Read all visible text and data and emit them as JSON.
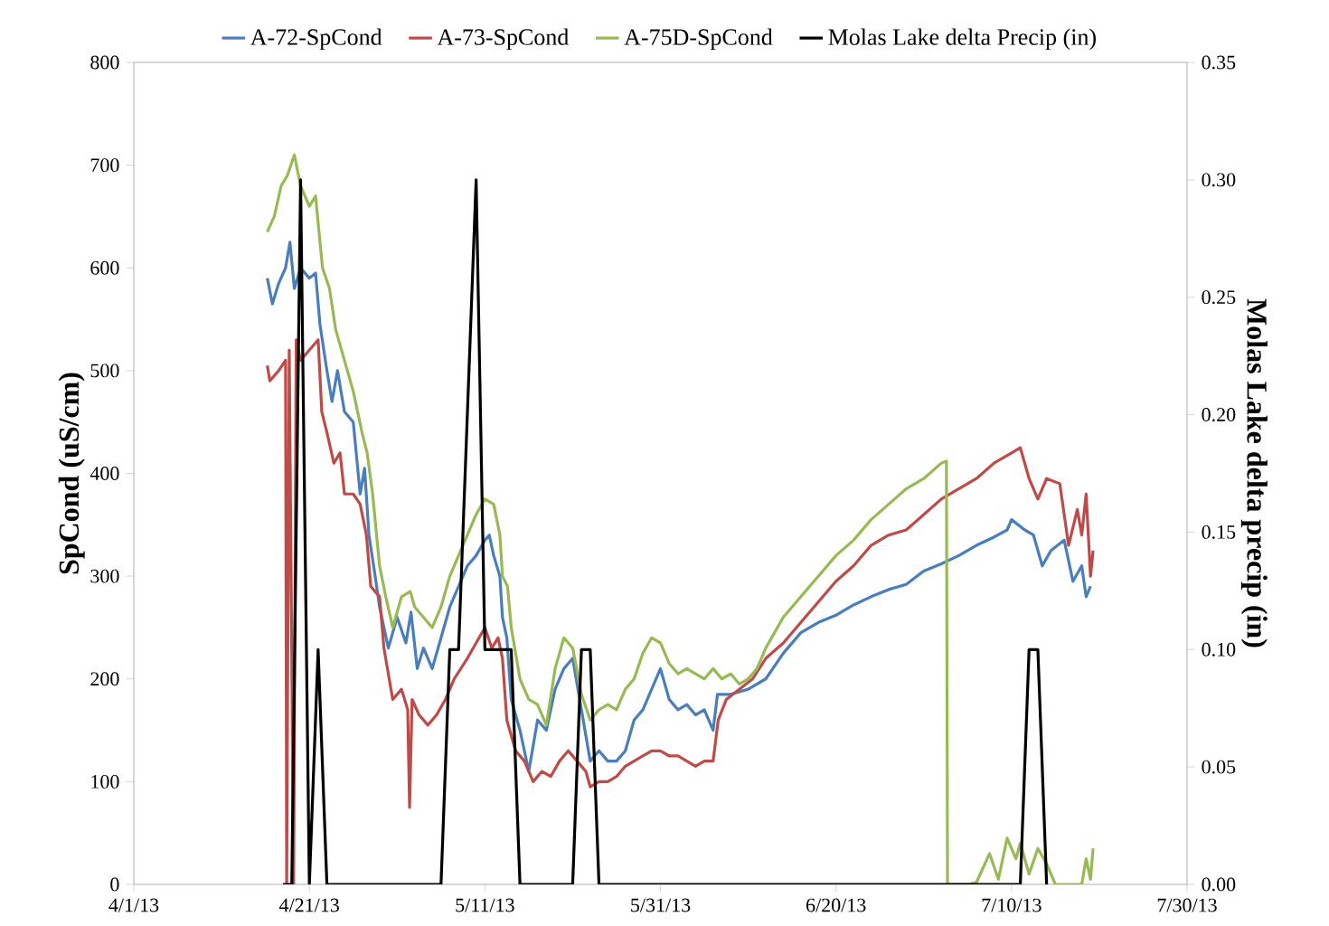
{
  "chart_data": {
    "type": "line",
    "ylabel": "SpCond (uS/cm)",
    "y2label": "Molas Lake delta precip (in)",
    "xlim": [
      "2013-04-01",
      "2013-07-30"
    ],
    "xticks": [
      {
        "value": "2013-04-01",
        "label": "4/1/13"
      },
      {
        "value": "2013-04-21",
        "label": "4/21/13"
      },
      {
        "value": "2013-05-11",
        "label": "5/11/13"
      },
      {
        "value": "2013-05-31",
        "label": "5/31/13"
      },
      {
        "value": "2013-06-20",
        "label": "6/20/13"
      },
      {
        "value": "2013-07-10",
        "label": "7/10/13"
      },
      {
        "value": "2013-07-30",
        "label": "7/30/13"
      }
    ],
    "ylim": [
      0,
      800
    ],
    "yticks": [
      0,
      100,
      200,
      300,
      400,
      500,
      600,
      700,
      800
    ],
    "y2lim": [
      0,
      0.35
    ],
    "y2ticks": [
      {
        "value": 0,
        "label": "0.00"
      },
      {
        "value": 0.05,
        "label": "0.05"
      },
      {
        "value": 0.1,
        "label": "0.10"
      },
      {
        "value": 0.15,
        "label": "0.15"
      },
      {
        "value": 0.2,
        "label": "0.20"
      },
      {
        "value": 0.25,
        "label": "0.25"
      },
      {
        "value": 0.3,
        "label": "0.30"
      },
      {
        "value": 0.35,
        "label": "0.35"
      }
    ],
    "legend": "top",
    "marker": "none",
    "line_style": "solid",
    "grid": false,
    "series": [
      {
        "name": "A-72-SpCond",
        "color": "#4a7ebb",
        "x": [
          "2013-04-16T05:00",
          "2013-04-16T19:00",
          "2013-04-17T12:00",
          "2013-04-18T07:00",
          "2013-04-18T19:00",
          "2013-04-19T07:00",
          "2013-04-20",
          "2013-04-21",
          "2013-04-21T17:00",
          "2013-04-22T05:00",
          "2013-04-23",
          "2013-04-23T14:00",
          "2013-04-24T05:00",
          "2013-04-25",
          "2013-04-26",
          "2013-04-26T19:00",
          "2013-04-27T07:00",
          "2013-04-27T19:00",
          "2013-04-28T12:00",
          "2013-04-29",
          "2013-04-30",
          "2013-05-01",
          "2013-05-02",
          "2013-05-02T14:00",
          "2013-05-03T07:00",
          "2013-05-04",
          "2013-05-05",
          "2013-05-06",
          "2013-05-07",
          "2013-05-08",
          "2013-05-09",
          "2013-05-10",
          "2013-05-11",
          "2013-05-11T12:00",
          "2013-05-12",
          "2013-05-12T17:00",
          "2013-05-13",
          "2013-05-13T12:00",
          "2013-05-14",
          "2013-05-15",
          "2013-05-16",
          "2013-05-17",
          "2013-05-18",
          "2013-05-19",
          "2013-05-20",
          "2013-05-21",
          "2013-05-22",
          "2013-05-23",
          "2013-05-24",
          "2013-05-25",
          "2013-05-26",
          "2013-05-27",
          "2013-05-28",
          "2013-05-29",
          "2013-05-30",
          "2013-05-31",
          "2013-06-01",
          "2013-06-02",
          "2013-06-03",
          "2013-06-04",
          "2013-06-05",
          "2013-06-06",
          "2013-06-06T12:00",
          "2013-06-08",
          "2013-06-10",
          "2013-06-12",
          "2013-06-14",
          "2013-06-16",
          "2013-06-18",
          "2013-06-20",
          "2013-06-22",
          "2013-06-24",
          "2013-06-26",
          "2013-06-28",
          "2013-06-30",
          "2013-07-02",
          "2013-07-04",
          "2013-07-06",
          "2013-07-08",
          "2013-07-09T12:00",
          "2013-07-10",
          "2013-07-11T12:00",
          "2013-07-12T12:00",
          "2013-07-13T12:00",
          "2013-07-14T12:00",
          "2013-07-16",
          "2013-07-17",
          "2013-07-18",
          "2013-07-18T12:00",
          "2013-07-19"
        ],
        "values": [
          590,
          565,
          585,
          600,
          625,
          580,
          600,
          590,
          595,
          545,
          500,
          470,
          500,
          460,
          450,
          380,
          405,
          340,
          300,
          270,
          230,
          260,
          235,
          265,
          210,
          230,
          210,
          240,
          270,
          290,
          310,
          320,
          335,
          340,
          320,
          300,
          260,
          240,
          180,
          150,
          110,
          160,
          150,
          190,
          210,
          220,
          170,
          120,
          130,
          120,
          120,
          130,
          160,
          170,
          190,
          210,
          180,
          170,
          175,
          165,
          170,
          150,
          185,
          185,
          190,
          200,
          225,
          245,
          255,
          262,
          272,
          280,
          287,
          292,
          305,
          312,
          320,
          330,
          338,
          345,
          355,
          345,
          340,
          310,
          325,
          335,
          295,
          310,
          280,
          290
        ]
      },
      {
        "name": "A-73-SpCond",
        "color": "#be4b48",
        "x": [
          "2013-04-16T05:00",
          "2013-04-16T12:00",
          "2013-04-17T12:00",
          "2013-04-18T07:00",
          "2013-04-18T10:00",
          "2013-04-18T17:00",
          "2013-04-19T05:00",
          "2013-04-19T12:00",
          "2013-04-20",
          "2013-04-21",
          "2013-04-22",
          "2013-04-22T10:00",
          "2013-04-23",
          "2013-04-23T19:00",
          "2013-04-24T12:00",
          "2013-04-25",
          "2013-04-26",
          "2013-04-26T19:00",
          "2013-04-27T12:00",
          "2013-04-28",
          "2013-04-29",
          "2013-04-29T12:00",
          "2013-04-30T12:00",
          "2013-05-01T12:00",
          "2013-05-02T05:00",
          "2013-05-02T10:00",
          "2013-05-02T17:00",
          "2013-05-03T12:00",
          "2013-05-04T12:00",
          "2013-05-05T12:00",
          "2013-05-06T12:00",
          "2013-05-07T12:00",
          "2013-05-09",
          "2013-05-10",
          "2013-05-11",
          "2013-05-11T19:00",
          "2013-05-12T12:00",
          "2013-05-13",
          "2013-05-13T12:00",
          "2013-05-14T12:00",
          "2013-05-15T12:00",
          "2013-05-16T12:00",
          "2013-05-17T12:00",
          "2013-05-18T12:00",
          "2013-05-19T12:00",
          "2013-05-20T12:00",
          "2013-05-21T12:00",
          "2013-05-22T12:00",
          "2013-05-23",
          "2013-05-24",
          "2013-05-25",
          "2013-05-26",
          "2013-05-27",
          "2013-05-28",
          "2013-05-29",
          "2013-05-30",
          "2013-05-31",
          "2013-06-01",
          "2013-06-02",
          "2013-06-03",
          "2013-06-04",
          "2013-06-05",
          "2013-06-06",
          "2013-06-06T14:00",
          "2013-06-07T12:00",
          "2013-06-09",
          "2013-06-10T12:00",
          "2013-06-12",
          "2013-06-14",
          "2013-06-16",
          "2013-06-18",
          "2013-06-20",
          "2013-06-22",
          "2013-06-24",
          "2013-06-26",
          "2013-06-28",
          "2013-06-30",
          "2013-07-02",
          "2013-07-04",
          "2013-07-06",
          "2013-07-08",
          "2013-07-10",
          "2013-07-11",
          "2013-07-12",
          "2013-07-13",
          "2013-07-14",
          "2013-07-15T12:00",
          "2013-07-16T12:00",
          "2013-07-17T12:00",
          "2013-07-18",
          "2013-07-18T12:00",
          "2013-07-19",
          "2013-07-19T07:00"
        ],
        "values": [
          505,
          490,
          500,
          510,
          0,
          520,
          0,
          530,
          510,
          520,
          530,
          460,
          440,
          410,
          420,
          380,
          380,
          370,
          340,
          290,
          280,
          230,
          180,
          190,
          170,
          75,
          180,
          165,
          155,
          165,
          180,
          200,
          220,
          235,
          250,
          230,
          240,
          220,
          160,
          130,
          120,
          100,
          110,
          105,
          120,
          130,
          120,
          110,
          95,
          100,
          100,
          105,
          115,
          120,
          125,
          130,
          130,
          125,
          125,
          120,
          115,
          120,
          120,
          160,
          180,
          190,
          200,
          220,
          235,
          255,
          275,
          295,
          310,
          330,
          340,
          345,
          360,
          375,
          385,
          395,
          410,
          420,
          425,
          395,
          375,
          395,
          390,
          330,
          365,
          340,
          380,
          300,
          325
        ]
      },
      {
        "name": "A-75D-SpCond",
        "color": "#98b954",
        "x": [
          "2013-04-16T05:00",
          "2013-04-17",
          "2013-04-17T19:00",
          "2013-04-18T12:00",
          "2013-04-19T07:00",
          "2013-04-20",
          "2013-04-21",
          "2013-04-21T17:00",
          "2013-04-22T12:00",
          "2013-04-23T07:00",
          "2013-04-24",
          "2013-04-25",
          "2013-04-26",
          "2013-04-27",
          "2013-04-27T14:00",
          "2013-04-28T05:00",
          "2013-04-29",
          "2013-04-29T17:00",
          "2013-04-30T12:00",
          "2013-05-01T12:00",
          "2013-05-02T12:00",
          "2013-05-03",
          "2013-05-04",
          "2013-05-05",
          "2013-05-06",
          "2013-05-07",
          "2013-05-08",
          "2013-05-09",
          "2013-05-10",
          "2013-05-11",
          "2013-05-12",
          "2013-05-12T17:00",
          "2013-05-13",
          "2013-05-13T14:00",
          "2013-05-14",
          "2013-05-15",
          "2013-05-16",
          "2013-05-17",
          "2013-05-18",
          "2013-05-19",
          "2013-05-20",
          "2013-05-21",
          "2013-05-22",
          "2013-05-23",
          "2013-05-24",
          "2013-05-25",
          "2013-05-26",
          "2013-05-27",
          "2013-05-28",
          "2013-05-29",
          "2013-05-30",
          "2013-05-31",
          "2013-06-01",
          "2013-06-02",
          "2013-06-03",
          "2013-06-04",
          "2013-06-05",
          "2013-06-06",
          "2013-06-07",
          "2013-06-08",
          "2013-06-09",
          "2013-06-10",
          "2013-06-11",
          "2013-06-12",
          "2013-06-14",
          "2013-06-16",
          "2013-06-18",
          "2013-06-20",
          "2013-06-22",
          "2013-06-24",
          "2013-06-26",
          "2013-06-28",
          "2013-06-30",
          "2013-07-02",
          "2013-07-02T14:00",
          "2013-07-02T17:00",
          "2013-07-05",
          "2013-07-06",
          "2013-07-07T12:00",
          "2013-07-08T12:00",
          "2013-07-09T12:00",
          "2013-07-10T12:00",
          "2013-07-11",
          "2013-07-12",
          "2013-07-13",
          "2013-07-14",
          "2013-07-15",
          "2013-07-17",
          "2013-07-18",
          "2013-07-18T12:00",
          "2013-07-19",
          "2013-07-19T07:00"
        ],
        "values": [
          635,
          650,
          680,
          690,
          710,
          680,
          660,
          670,
          600,
          580,
          540,
          510,
          480,
          440,
          420,
          380,
          310,
          280,
          250,
          280,
          285,
          270,
          260,
          250,
          270,
          300,
          320,
          340,
          360,
          375,
          370,
          340,
          300,
          290,
          250,
          200,
          180,
          175,
          155,
          210,
          240,
          230,
          185,
          160,
          170,
          175,
          170,
          190,
          200,
          225,
          240,
          235,
          215,
          205,
          210,
          205,
          200,
          210,
          200,
          205,
          195,
          200,
          210,
          230,
          260,
          280,
          300,
          320,
          335,
          355,
          370,
          385,
          395,
          410,
          412,
          0,
          0,
          2,
          30,
          5,
          45,
          25,
          40,
          10,
          35,
          20,
          0,
          0,
          0,
          25,
          5,
          35
        ]
      },
      {
        "name": "Molas Lake delta Precip (in)",
        "color": "#000000",
        "axis": "y2",
        "x": [
          "2013-04-18",
          "2013-04-19",
          "2013-04-20",
          "2013-04-21",
          "2013-04-22",
          "2013-04-23",
          "2013-05-06",
          "2013-05-07",
          "2013-05-08",
          "2013-05-10",
          "2013-05-11",
          "2013-05-14",
          "2013-05-15",
          "2013-05-21",
          "2013-05-22",
          "2013-05-23",
          "2013-05-24",
          "2013-07-11",
          "2013-07-12",
          "2013-07-13",
          "2013-07-14"
        ],
        "values": [
          0,
          0,
          0.3,
          0,
          0.1,
          0,
          0,
          0.1,
          0.1,
          0.3,
          0.1,
          0.1,
          0,
          0,
          0.1,
          0.1,
          0,
          0,
          0.1,
          0.1,
          0
        ]
      }
    ]
  }
}
